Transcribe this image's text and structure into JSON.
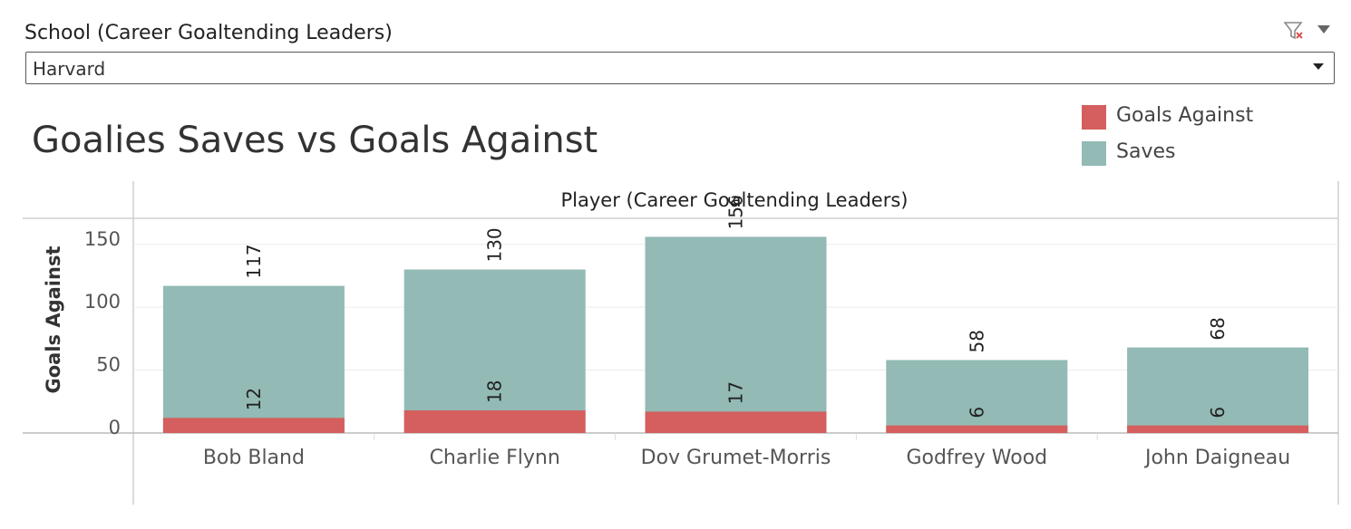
{
  "filter": {
    "title": "School (Career Goaltending Leaders)",
    "selected": "Harvard"
  },
  "chart_data": {
    "type": "bar",
    "title": "Goalies Saves vs Goals Against",
    "header": "Player (Career Goaltending Leaders)",
    "ylabel": "Goals Against",
    "ylim": [
      0,
      170
    ],
    "yticks": [
      0,
      50,
      100,
      150
    ],
    "categories": [
      "Bob Bland",
      "Charlie Flynn",
      "Dov Grumet-Morris",
      "Godfrey Wood",
      "John Daigneau"
    ],
    "series": [
      {
        "name": "Goals Against",
        "values": [
          12,
          18,
          17,
          6,
          6
        ],
        "color": "#d45f5e"
      },
      {
        "name": "Saves",
        "values": [
          117,
          130,
          156,
          58,
          68
        ],
        "color": "#93bab5"
      }
    ],
    "legend_position": "top-right",
    "grid": true
  }
}
